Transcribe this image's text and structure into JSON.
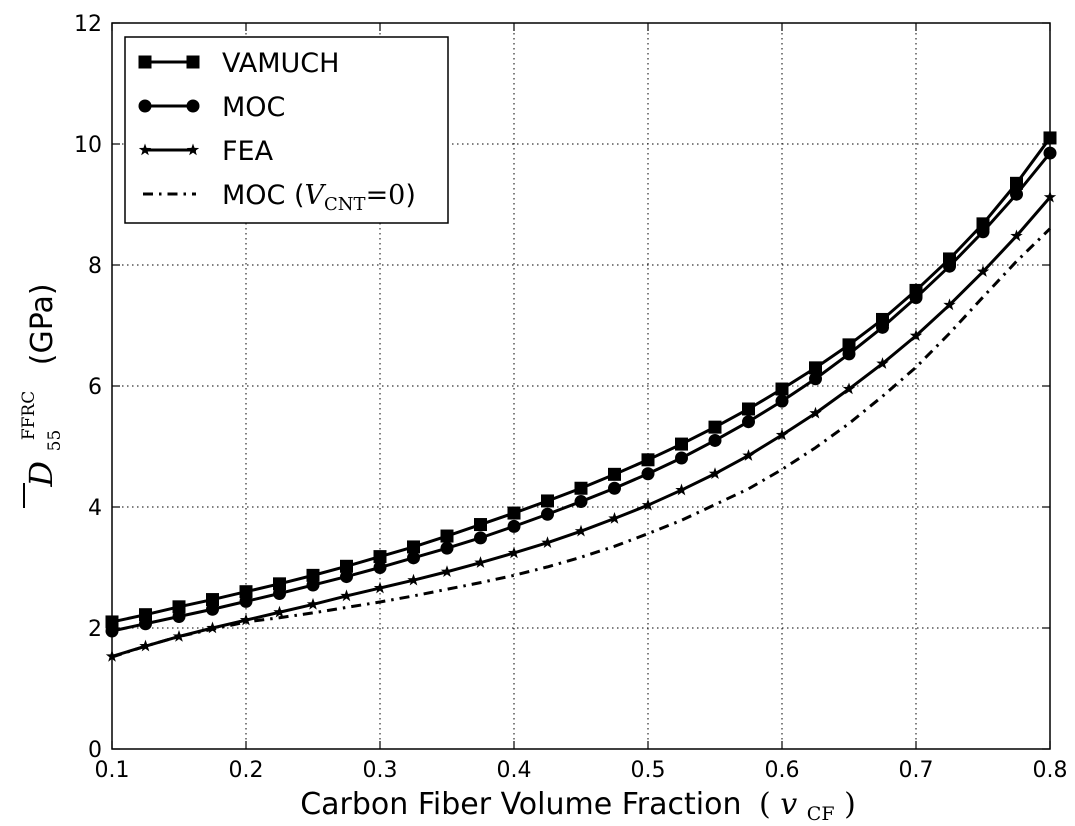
{
  "chart_data": {
    "type": "line",
    "xlabel_text": "Carbon Fiber Volume Fraction",
    "xlabel_math": {
      "open": "(",
      "var": "v",
      "sub": "CF",
      "close": ")"
    },
    "ylabel": {
      "bar_symbol": "D",
      "sub": "55",
      "sup": "FFRC",
      "unit": "(GPa)"
    },
    "xlim": [
      0.1,
      0.8
    ],
    "ylim": [
      0,
      12
    ],
    "x_ticks": [
      "0.1",
      "0.2",
      "0.3",
      "0.4",
      "0.5",
      "0.6",
      "0.7",
      "0.8"
    ],
    "y_ticks": [
      "0",
      "2",
      "4",
      "6",
      "8",
      "10",
      "12"
    ],
    "grid": true,
    "legend_position": "top-left",
    "x": [
      0.1,
      0.125,
      0.15,
      0.175,
      0.2,
      0.225,
      0.25,
      0.275,
      0.3,
      0.325,
      0.35,
      0.375,
      0.4,
      0.425,
      0.45,
      0.475,
      0.5,
      0.525,
      0.55,
      0.575,
      0.6,
      0.625,
      0.65,
      0.675,
      0.7,
      0.725,
      0.75,
      0.775,
      0.8
    ],
    "series": [
      {
        "name": "VAMUCH",
        "marker": "square",
        "line": "solid",
        "values": [
          2.1,
          2.22,
          2.35,
          2.47,
          2.6,
          2.73,
          2.87,
          3.02,
          3.18,
          3.34,
          3.52,
          3.71,
          3.9,
          4.1,
          4.31,
          4.54,
          4.78,
          5.04,
          5.32,
          5.62,
          5.95,
          6.3,
          6.68,
          7.1,
          7.58,
          8.1,
          8.68,
          9.35,
          10.1
        ]
      },
      {
        "name": "MOC",
        "marker": "circle",
        "line": "solid",
        "values": [
          1.95,
          2.07,
          2.19,
          2.31,
          2.44,
          2.57,
          2.71,
          2.85,
          3.0,
          3.16,
          3.32,
          3.49,
          3.68,
          3.88,
          4.09,
          4.31,
          4.55,
          4.81,
          5.1,
          5.41,
          5.75,
          6.12,
          6.53,
          6.97,
          7.46,
          7.98,
          8.55,
          9.17,
          9.85
        ]
      },
      {
        "name": "FEA",
        "marker": "star",
        "line": "solid",
        "values": [
          1.53,
          1.7,
          1.86,
          2.0,
          2.13,
          2.26,
          2.39,
          2.53,
          2.66,
          2.79,
          2.93,
          3.08,
          3.24,
          3.41,
          3.6,
          3.81,
          4.03,
          4.28,
          4.55,
          4.85,
          5.19,
          5.55,
          5.95,
          6.37,
          6.83,
          7.34,
          7.89,
          8.48,
          9.12
        ]
      },
      {
        "name_text": "MOC (",
        "name_math": {
          "var": "V",
          "sub": "CNT",
          "eq": "=0"
        },
        "name_close": ")",
        "marker": "none",
        "line": "dashdot",
        "values": [
          1.52,
          1.7,
          1.86,
          1.98,
          2.1,
          2.17,
          2.25,
          2.34,
          2.43,
          2.53,
          2.64,
          2.75,
          2.87,
          3.01,
          3.17,
          3.35,
          3.56,
          3.78,
          4.04,
          4.3,
          4.62,
          4.98,
          5.38,
          5.83,
          6.31,
          6.87,
          7.47,
          8.06,
          8.6
        ]
      }
    ]
  }
}
